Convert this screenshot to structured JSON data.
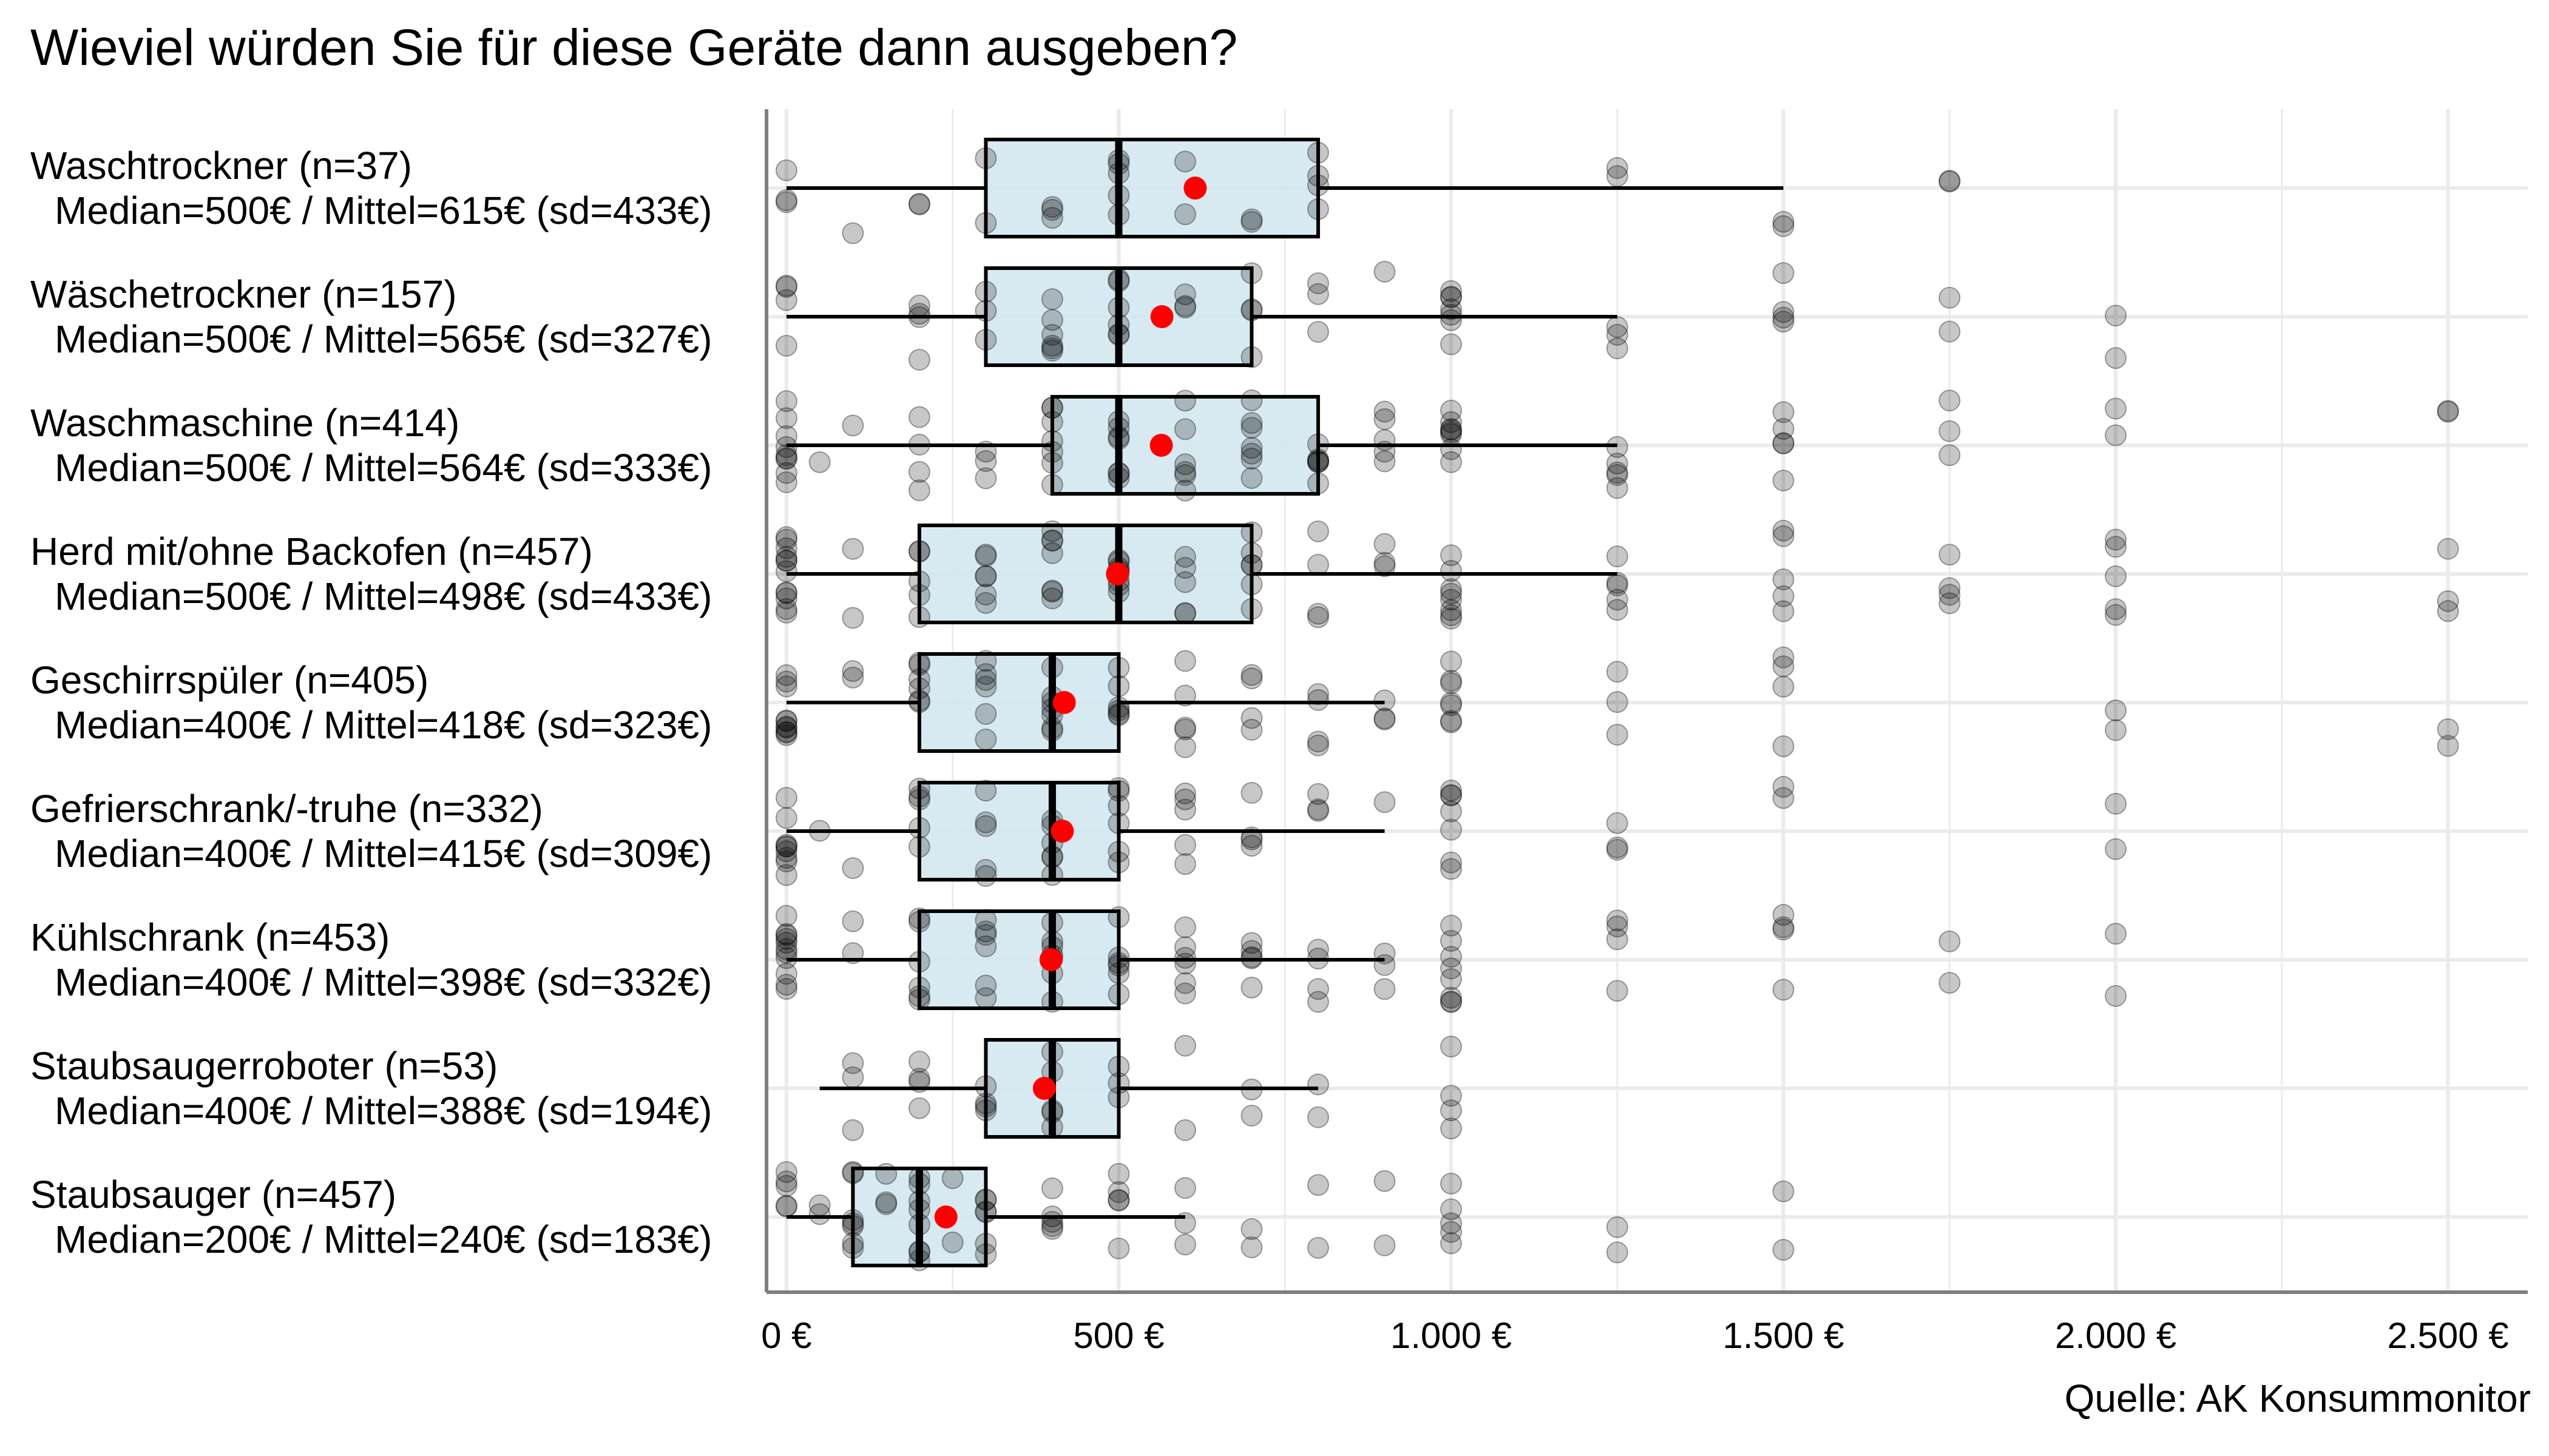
{
  "title": "Wieviel würden Sie für diese Geräte dann ausgeben?",
  "source": "Quelle: AK Konsummonitor",
  "colors": {
    "box_fill": "#d4e8ef",
    "mean_dot": "#ff0000",
    "point": "#000000",
    "grid": "#ebebeb",
    "axis": "#7f7f7f"
  },
  "chart_data": {
    "type": "boxplot",
    "title": "Wieviel würden Sie für diese Geräte dann ausgeben?",
    "xlabel": "",
    "ylabel": "",
    "xlim": [
      -30,
      2620
    ],
    "x_ticks": [
      0,
      500,
      1000,
      1500,
      2000,
      2500
    ],
    "x_tick_labels": [
      "0 €",
      "500 €",
      "1.000 €",
      "1.500 €",
      "2.000 €",
      "2.500 €"
    ],
    "grid": true,
    "series": [
      {
        "name": "Waschtrockner",
        "n": "(n=37)",
        "stats": "Median=500€ / Mittel=615€ (sd=433€)",
        "whisker_low": 0,
        "q1": 300,
        "median": 500,
        "q3": 800,
        "whisker_high": 1500,
        "mean": 615,
        "points": [
          0,
          0,
          0,
          100,
          200,
          200,
          300,
          300,
          400,
          400,
          400,
          500,
          500,
          500,
          500,
          500,
          600,
          600,
          700,
          700,
          800,
          800,
          800,
          800,
          1250,
          1250,
          1500,
          1500,
          1750,
          1750
        ]
      },
      {
        "name": "Wäschetrockner",
        "n": "(n=157)",
        "stats": "Median=500€ / Mittel=565€ (sd=327€)",
        "whisker_low": 0,
        "q1": 300,
        "median": 500,
        "q3": 700,
        "whisker_high": 1250,
        "mean": 565,
        "points": [
          0,
          0,
          0,
          0,
          200,
          200,
          200,
          200,
          300,
          300,
          300,
          400,
          400,
          400,
          400,
          400,
          400,
          500,
          500,
          500,
          500,
          500,
          500,
          600,
          600,
          600,
          700,
          700,
          700,
          700,
          800,
          800,
          800,
          900,
          1000,
          1000,
          1000,
          1000,
          1000,
          1000,
          1000,
          1250,
          1250,
          1250,
          1500,
          1500,
          1500,
          1500,
          1750,
          1750,
          2000,
          2000
        ]
      },
      {
        "name": "Waschmaschine",
        "n": "(n=414)",
        "stats": "Median=500€ / Mittel=564€ (sd=333€)",
        "whisker_low": 0,
        "q1": 400,
        "median": 500,
        "q3": 800,
        "whisker_high": 1250,
        "mean": 564,
        "points": [
          0,
          0,
          0,
          0,
          0,
          0,
          0,
          0,
          0,
          50,
          100,
          200,
          200,
          200,
          200,
          300,
          300,
          300,
          400,
          400,
          400,
          400,
          400,
          400,
          400,
          500,
          500,
          500,
          500,
          500,
          500,
          500,
          600,
          600,
          600,
          600,
          600,
          600,
          700,
          700,
          700,
          700,
          700,
          700,
          700,
          800,
          800,
          800,
          800,
          800,
          800,
          900,
          900,
          900,
          900,
          900,
          1000,
          1000,
          1000,
          1000,
          1000,
          1000,
          1000,
          1000,
          1250,
          1250,
          1250,
          1250,
          1250,
          1500,
          1500,
          1500,
          1500,
          1500,
          1750,
          1750,
          1750,
          2000,
          2000,
          2500,
          2500
        ]
      },
      {
        "name": "Herd mit/ohne Backofen",
        "n": "(n=457)",
        "stats": "Median=500€ / Mittel=498€ (sd=433€)",
        "whisker_low": 0,
        "q1": 200,
        "median": 500,
        "q3": 700,
        "whisker_high": 1250,
        "mean": 498,
        "points": [
          0,
          0,
          0,
          0,
          0,
          0,
          0,
          0,
          0,
          0,
          0,
          0,
          100,
          100,
          200,
          200,
          200,
          200,
          200,
          300,
          300,
          300,
          300,
          300,
          300,
          400,
          400,
          400,
          400,
          400,
          400,
          400,
          500,
          500,
          500,
          500,
          500,
          500,
          500,
          500,
          600,
          600,
          600,
          600,
          600,
          700,
          700,
          700,
          700,
          700,
          700,
          800,
          800,
          800,
          800,
          900,
          900,
          900,
          1000,
          1000,
          1000,
          1000,
          1000,
          1000,
          1000,
          1000,
          1250,
          1250,
          1250,
          1250,
          1250,
          1500,
          1500,
          1500,
          1500,
          1500,
          1750,
          1750,
          1750,
          1750,
          2000,
          2000,
          2000,
          2000,
          2000,
          2500,
          2500,
          2500
        ]
      },
      {
        "name": "Geschirrspüler",
        "n": "(n=405)",
        "stats": "Median=400€ / Mittel=418€ (sd=323€)",
        "whisker_low": 0,
        "q1": 200,
        "median": 400,
        "q3": 500,
        "whisker_high": 900,
        "mean": 418,
        "points": [
          0,
          0,
          0,
          0,
          0,
          0,
          0,
          0,
          0,
          0,
          100,
          100,
          200,
          200,
          200,
          200,
          200,
          200,
          300,
          300,
          300,
          300,
          300,
          300,
          400,
          400,
          400,
          400,
          400,
          400,
          400,
          500,
          500,
          500,
          500,
          500,
          500,
          600,
          600,
          600,
          600,
          600,
          700,
          700,
          700,
          700,
          800,
          800,
          800,
          800,
          900,
          900,
          900,
          1000,
          1000,
          1000,
          1000,
          1000,
          1000,
          1000,
          1250,
          1250,
          1250,
          1500,
          1500,
          1500,
          1500,
          2000,
          2000,
          2500,
          2500
        ]
      },
      {
        "name": "Gefrierschrank/-truhe",
        "n": "(n=332)",
        "stats": "Median=400€ / Mittel=415€ (sd=309€)",
        "whisker_low": 0,
        "q1": 200,
        "median": 400,
        "q3": 500,
        "whisker_high": 900,
        "mean": 415,
        "points": [
          0,
          0,
          0,
          0,
          0,
          0,
          0,
          0,
          0,
          50,
          100,
          200,
          200,
          200,
          200,
          200,
          300,
          300,
          300,
          300,
          300,
          400,
          400,
          400,
          400,
          400,
          400,
          500,
          500,
          500,
          500,
          500,
          500,
          600,
          600,
          600,
          600,
          600,
          700,
          700,
          700,
          700,
          800,
          800,
          800,
          900,
          1000,
          1000,
          1000,
          1000,
          1000,
          1000,
          1000,
          1250,
          1250,
          1250,
          1500,
          1500,
          2000,
          2000
        ]
      },
      {
        "name": "Kühlschrank",
        "n": "(n=453)",
        "stats": "Median=400€ / Mittel=398€ (sd=332€)",
        "whisker_low": 0,
        "q1": 200,
        "median": 400,
        "q3": 500,
        "whisker_high": 900,
        "mean": 398,
        "points": [
          0,
          0,
          0,
          0,
          0,
          0,
          0,
          0,
          0,
          0,
          0,
          100,
          100,
          200,
          200,
          200,
          200,
          200,
          200,
          300,
          300,
          300,
          300,
          300,
          300,
          400,
          400,
          400,
          400,
          400,
          400,
          400,
          500,
          500,
          500,
          500,
          500,
          500,
          600,
          600,
          600,
          600,
          600,
          600,
          700,
          700,
          700,
          700,
          700,
          800,
          800,
          800,
          800,
          900,
          900,
          900,
          1000,
          1000,
          1000,
          1000,
          1000,
          1000,
          1000,
          1000,
          1250,
          1250,
          1250,
          1250,
          1500,
          1500,
          1500,
          1500,
          1750,
          1750,
          2000,
          2000
        ]
      },
      {
        "name": "Staubsaugerroboter",
        "n": "(n=53)",
        "stats": "Median=400€ / Mittel=388€ (sd=194€)",
        "whisker_low": 50,
        "q1": 300,
        "median": 400,
        "q3": 500,
        "whisker_high": 800,
        "mean": 388,
        "points": [
          100,
          100,
          100,
          200,
          200,
          200,
          200,
          300,
          300,
          300,
          300,
          400,
          400,
          400,
          400,
          400,
          500,
          500,
          500,
          600,
          600,
          700,
          700,
          800,
          800,
          1000,
          1000,
          1000,
          1000
        ]
      },
      {
        "name": "Staubsauger",
        "n": "(n=457)",
        "stats": "Median=200€ / Mittel=240€ (sd=183€)",
        "whisker_low": 0,
        "q1": 100,
        "median": 200,
        "q3": 300,
        "whisker_high": 600,
        "mean": 240,
        "points": [
          0,
          0,
          0,
          0,
          0,
          50,
          50,
          100,
          100,
          100,
          100,
          100,
          100,
          100,
          150,
          150,
          150,
          200,
          200,
          200,
          200,
          200,
          200,
          200,
          200,
          250,
          250,
          300,
          300,
          300,
          300,
          300,
          300,
          400,
          400,
          400,
          400,
          400,
          500,
          500,
          500,
          500,
          500,
          600,
          600,
          600,
          700,
          700,
          800,
          800,
          900,
          900,
          1000,
          1000,
          1000,
          1000,
          1000,
          1250,
          1250,
          1500,
          1500
        ]
      }
    ]
  }
}
